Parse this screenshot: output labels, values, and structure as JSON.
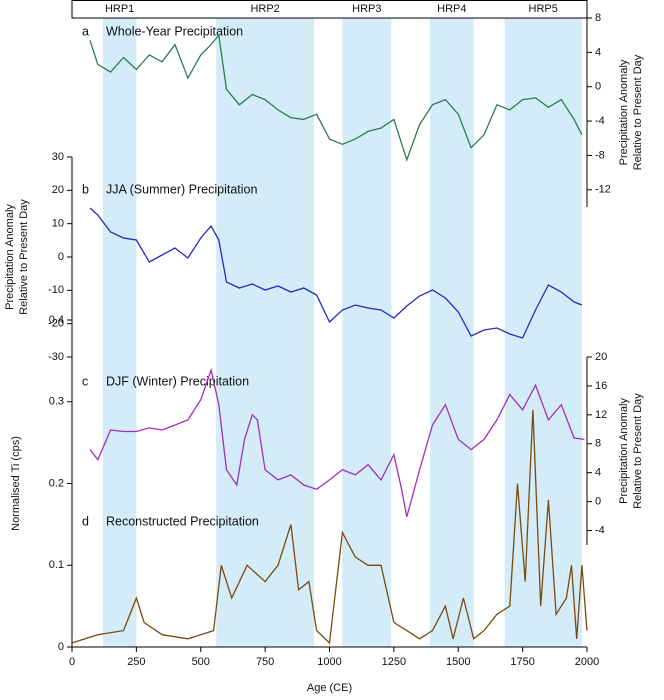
{
  "periods": [
    {
      "label": "HRP1",
      "start": 120,
      "end": 250
    },
    {
      "label": "HRP2",
      "start": 560,
      "end": 940
    },
    {
      "label": "HRP3",
      "start": 1050,
      "end": 1240
    },
    {
      "label": "HRP4",
      "start": 1390,
      "end": 1560
    },
    {
      "label": "HRP5",
      "start": 1680,
      "end": 1980
    }
  ],
  "chart_data": [
    {
      "type": "line",
      "panel": "a",
      "title": "Whole-Year Precipitation",
      "y_axis": "right",
      "ylabel": [
        "Precipitation Anomaly",
        "Relative to Present Day"
      ],
      "color": "#2e7d4f",
      "ylim": [
        -14,
        8
      ],
      "yticks": [
        8,
        4,
        0,
        -4,
        -8,
        -12
      ],
      "x": [
        70,
        100,
        150,
        200,
        250,
        300,
        350,
        400,
        450,
        500,
        540,
        570,
        600,
        650,
        700,
        750,
        800,
        850,
        900,
        950,
        1000,
        1050,
        1100,
        1150,
        1200,
        1250,
        1300,
        1350,
        1400,
        1450,
        1500,
        1550,
        1600,
        1650,
        1700,
        1750,
        1800,
        1850,
        1900,
        1950,
        1980
      ],
      "values": [
        5.4,
        2.6,
        1.7,
        3.4,
        2.0,
        3.7,
        2.9,
        4.9,
        1.0,
        3.7,
        4.9,
        6.0,
        -0.3,
        -2.1,
        -0.9,
        -1.5,
        -2.7,
        -3.6,
        -3.8,
        -3.2,
        -6.1,
        -6.7,
        -6.1,
        -5.2,
        -4.8,
        -3.8,
        -8.5,
        -4.4,
        -2.1,
        -1.5,
        -3.2,
        -7.1,
        -5.6,
        -2.1,
        -2.7,
        -1.5,
        -1.3,
        -2.4,
        -1.5,
        -3.8,
        -5.6
      ]
    },
    {
      "type": "line",
      "panel": "b",
      "title": "JJA (Summer) Precipitation",
      "y_axis": "left",
      "ylabel": [
        "Precipitation Anomaly",
        "Relative to Present Day"
      ],
      "color": "#1f2fbf",
      "ylim": [
        -30,
        30
      ],
      "yticks": [
        30,
        20,
        10,
        0,
        -10,
        -20,
        -30
      ],
      "x": [
        70,
        100,
        150,
        200,
        250,
        300,
        350,
        400,
        450,
        500,
        540,
        570,
        600,
        650,
        700,
        750,
        800,
        850,
        900,
        950,
        1000,
        1050,
        1100,
        1150,
        1200,
        1250,
        1300,
        1350,
        1400,
        1450,
        1500,
        1550,
        1600,
        1650,
        1700,
        1750,
        1800,
        1850,
        1900,
        1950,
        1980
      ],
      "values": [
        14.7,
        12.6,
        7.5,
        5.7,
        5.1,
        -1.5,
        0.6,
        2.7,
        -0.3,
        5.7,
        9.3,
        5.1,
        -7.5,
        -9.3,
        -8.1,
        -9.9,
        -8.7,
        -10.5,
        -9.3,
        -11.4,
        -19.5,
        -15.9,
        -14.4,
        -15.3,
        -15.9,
        -18.3,
        -14.7,
        -11.7,
        -9.9,
        -12.3,
        -16.5,
        -23.7,
        -21.9,
        -21.3,
        -23.1,
        -24.3,
        -15.9,
        -8.4,
        -10.5,
        -13.5,
        -14.4
      ]
    },
    {
      "type": "line",
      "panel": "c",
      "title": "DJF (Winter) Precipitation",
      "y_axis": "right",
      "ylabel": [
        "Precipitation Anomaly",
        "Relative to Present Day"
      ],
      "color": "#a02fc0",
      "ylim": [
        -6,
        20
      ],
      "yticks": [
        20,
        16,
        12,
        8,
        4,
        0,
        -4
      ],
      "x": [
        70,
        100,
        150,
        200,
        250,
        300,
        350,
        400,
        450,
        500,
        540,
        570,
        600,
        640,
        670,
        700,
        720,
        750,
        800,
        850,
        900,
        950,
        1000,
        1050,
        1100,
        1150,
        1200,
        1250,
        1280,
        1300,
        1350,
        1400,
        1450,
        1500,
        1550,
        1600,
        1650,
        1700,
        1750,
        1800,
        1850,
        1900,
        1950,
        1990
      ],
      "values": [
        7.2,
        5.8,
        9.9,
        9.7,
        9.7,
        10.2,
        9.9,
        10.6,
        11.3,
        14.1,
        18.2,
        13.4,
        4.4,
        2.3,
        8.6,
        12.0,
        11.3,
        4.4,
        3.0,
        3.7,
        2.3,
        1.7,
        3.0,
        4.4,
        3.7,
        5.1,
        3.0,
        6.5,
        1.7,
        -2.1,
        4.4,
        10.6,
        13.4,
        8.6,
        7.2,
        8.6,
        11.3,
        14.8,
        12.7,
        16.1,
        11.3,
        13.4,
        8.8,
        8.6
      ]
    },
    {
      "type": "line",
      "panel": "d",
      "title": "Reconstructed Precipitation",
      "y_axis": "left",
      "ylabel": [
        "Normalised Ti (cps)"
      ],
      "color": "#7a4a10",
      "ylim": [
        0,
        0.4
      ],
      "yticks": [
        0,
        0.1,
        0.2,
        0.3,
        0.4
      ],
      "xlabel": "Age (CE)",
      "xlim": [
        0,
        2000
      ],
      "xticks": [
        0,
        250,
        500,
        750,
        1000,
        1250,
        1500,
        1750,
        2000
      ],
      "x": [
        0,
        100,
        200,
        250,
        280,
        350,
        450,
        550,
        580,
        620,
        680,
        750,
        800,
        850,
        880,
        920,
        950,
        1000,
        1050,
        1100,
        1150,
        1200,
        1250,
        1300,
        1350,
        1400,
        1450,
        1480,
        1520,
        1560,
        1600,
        1650,
        1700,
        1730,
        1760,
        1790,
        1820,
        1850,
        1880,
        1920,
        1940,
        1960,
        1980,
        2000
      ],
      "values": [
        0.005,
        0.015,
        0.02,
        0.06,
        0.03,
        0.015,
        0.01,
        0.02,
        0.1,
        0.06,
        0.1,
        0.08,
        0.1,
        0.15,
        0.07,
        0.08,
        0.02,
        0.005,
        0.14,
        0.11,
        0.1,
        0.1,
        0.03,
        0.02,
        0.01,
        0.02,
        0.05,
        0.01,
        0.06,
        0.01,
        0.02,
        0.04,
        0.05,
        0.2,
        0.08,
        0.29,
        0.05,
        0.18,
        0.04,
        0.06,
        0.1,
        0.01,
        0.1,
        0.02
      ]
    }
  ]
}
